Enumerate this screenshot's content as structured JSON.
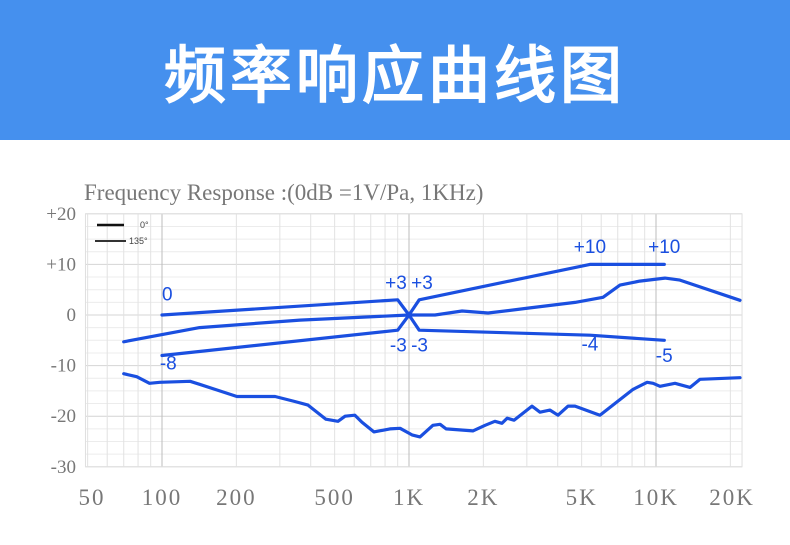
{
  "header": {
    "title": "频率响应曲线图"
  },
  "colors": {
    "banner": "#4590ee",
    "curve": "#1a4fe0",
    "grid": "#dddddd",
    "axis_text": "#777777"
  },
  "chart_data": {
    "type": "line",
    "title": "Frequency  Response :(0dB =1V/Pa, 1KHz)",
    "xscale": "log",
    "xlim": [
      49,
      22300
    ],
    "ylim": [
      -30,
      20
    ],
    "grid": true,
    "legend_placement": "top-left",
    "legend": [
      {
        "label": "0°"
      },
      {
        "label": "135°"
      }
    ],
    "yticks": [
      {
        "value": 20,
        "label": "+20"
      },
      {
        "value": 10,
        "label": "+10"
      },
      {
        "value": 0,
        "label": "0"
      },
      {
        "value": -10,
        "label": "-10"
      },
      {
        "value": -20,
        "label": "-20"
      },
      {
        "value": -30,
        "label": "-30"
      }
    ],
    "xticks": [
      {
        "value": 50,
        "label": "50"
      },
      {
        "value": 100,
        "label": "100"
      },
      {
        "value": 200,
        "label": "200"
      },
      {
        "value": 500,
        "label": "500"
      },
      {
        "value": 1000,
        "label": "1K"
      },
      {
        "value": 2000,
        "label": "2K"
      },
      {
        "value": 5000,
        "label": "5K"
      },
      {
        "value": 10000,
        "label": "10K"
      },
      {
        "value": 20000,
        "label": "20K"
      }
    ],
    "series": [
      {
        "name": "tolerance-upper-then-lower",
        "points": [
          [
            100,
            0
          ],
          [
            900,
            3
          ],
          [
            1000,
            0
          ],
          [
            1100,
            -3
          ],
          [
            5400,
            -4
          ],
          [
            10800,
            -5
          ]
        ]
      },
      {
        "name": "tolerance-lower-then-upper",
        "points": [
          [
            100,
            -8
          ],
          [
            900,
            -3
          ],
          [
            1000,
            0
          ],
          [
            1100,
            3
          ],
          [
            5400,
            10
          ],
          [
            10800,
            10
          ]
        ]
      },
      {
        "name": "0° response",
        "points": [
          [
            70,
            -5.3
          ],
          [
            142,
            -2.5
          ],
          [
            362,
            -1.0
          ],
          [
            1000,
            0
          ],
          [
            1274,
            0
          ],
          [
            1640,
            0.8
          ],
          [
            2090,
            0.4
          ],
          [
            3090,
            1.4
          ],
          [
            4700,
            2.5
          ],
          [
            6100,
            3.5
          ],
          [
            7150,
            5.9
          ],
          [
            8600,
            6.7
          ],
          [
            10870,
            7.3
          ],
          [
            12500,
            6.9
          ],
          [
            21880,
            2.9
          ]
        ]
      },
      {
        "name": "135° response",
        "points": [
          [
            70,
            -11.6
          ],
          [
            79,
            -12.2
          ],
          [
            89,
            -13.5
          ],
          [
            98,
            -13.3
          ],
          [
            130,
            -13.1
          ],
          [
            142,
            -13.7
          ],
          [
            164,
            -14.7
          ],
          [
            201,
            -16.1
          ],
          [
            287,
            -16.1
          ],
          [
            345,
            -17.1
          ],
          [
            390,
            -17.8
          ],
          [
            461,
            -20.6
          ],
          [
            516,
            -21.0
          ],
          [
            551,
            -20.0
          ],
          [
            604,
            -19.8
          ],
          [
            645,
            -21.2
          ],
          [
            721,
            -23.1
          ],
          [
            837,
            -22.5
          ],
          [
            920,
            -22.4
          ],
          [
            1028,
            -23.7
          ],
          [
            1108,
            -24.1
          ],
          [
            1250,
            -21.8
          ],
          [
            1336,
            -21.6
          ],
          [
            1413,
            -22.5
          ],
          [
            1815,
            -22.9
          ],
          [
            2032,
            -21.8
          ],
          [
            2228,
            -21.0
          ],
          [
            2380,
            -21.4
          ],
          [
            2495,
            -20.4
          ],
          [
            2662,
            -20.8
          ],
          [
            3148,
            -18.0
          ],
          [
            3390,
            -19.2
          ],
          [
            3724,
            -18.8
          ],
          [
            4010,
            -19.8
          ],
          [
            4405,
            -18.0
          ],
          [
            4699,
            -18.0
          ],
          [
            5930,
            -19.8
          ],
          [
            8070,
            -14.7
          ],
          [
            9200,
            -13.3
          ],
          [
            9730,
            -13.5
          ],
          [
            10380,
            -14.1
          ],
          [
            11940,
            -13.5
          ],
          [
            13740,
            -14.3
          ],
          [
            15070,
            -12.7
          ],
          [
            21880,
            -12.4
          ]
        ]
      }
    ],
    "annotations": [
      {
        "text": "0",
        "f": 100,
        "db": 2.9,
        "anchor": "start"
      },
      {
        "text": "-8",
        "f": 98,
        "db": -10.8,
        "anchor": "start"
      },
      {
        "text": "+3",
        "f": 980,
        "db": 5.1,
        "anchor": "end"
      },
      {
        "text": "+3",
        "f": 1020,
        "db": 5.1,
        "anchor": "start"
      },
      {
        "text": "-3",
        "f": 980,
        "db": -7.2,
        "anchor": "end"
      },
      {
        "text": "-3",
        "f": 1020,
        "db": -7.2,
        "anchor": "start"
      },
      {
        "text": "+10",
        "f": 5400,
        "db": 12.3,
        "anchor": "middle"
      },
      {
        "text": "+10",
        "f": 10800,
        "db": 12.3,
        "anchor": "middle"
      },
      {
        "text": "-4",
        "f": 5400,
        "db": -7,
        "anchor": "middle"
      },
      {
        "text": "-5",
        "f": 10800,
        "db": -9.3,
        "anchor": "middle"
      }
    ]
  }
}
